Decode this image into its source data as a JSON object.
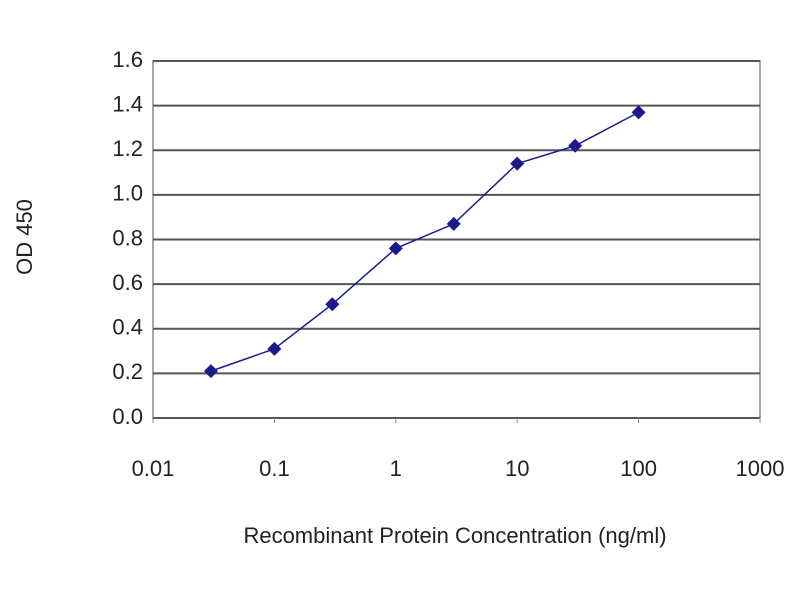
{
  "chart_data": {
    "type": "line",
    "x_label": "Recombinant Protein Concentration (ng/ml)",
    "y_label": "OD 450",
    "x": [
      0.03,
      0.1,
      0.3,
      1,
      3,
      10,
      30,
      100
    ],
    "series": [
      {
        "color": "#1a1a8c",
        "values": [
          0.21,
          0.31,
          0.51,
          0.76,
          0.87,
          1.14,
          1.22,
          1.37
        ]
      }
    ],
    "xscale": "log",
    "xlim": [
      0.01,
      1000
    ],
    "xticks": [
      0.01,
      0.1,
      1,
      10,
      100,
      1000
    ],
    "ylim": [
      0,
      1.6
    ],
    "yticks": [
      {
        "value": 0,
        "label": "0.0"
      },
      0.2,
      0.4,
      0.6,
      0.8,
      {
        "value": 1,
        "label": "1.0"
      },
      1.2,
      1.4,
      1.6
    ],
    "grid": true
  }
}
